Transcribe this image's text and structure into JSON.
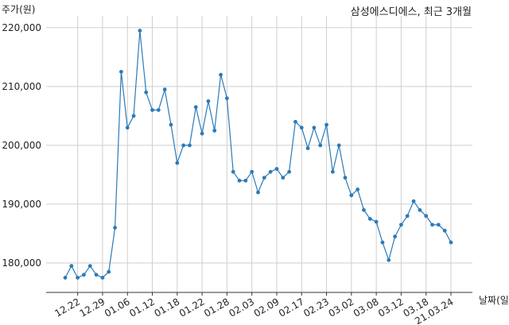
{
  "chart_data": {
    "type": "line",
    "title": "삼성에스디에스, 최근 3개월",
    "ylabel": "주가(원)",
    "xlabel": "날짜(일)",
    "ylim": [
      175000,
      222000
    ],
    "yticks": [
      180000,
      190000,
      200000,
      210000,
      220000
    ],
    "ytick_labels": [
      "180,000",
      "190,000",
      "200,000",
      "210,000",
      "220,000"
    ],
    "xtick_labels": [
      "12.22",
      "12.29",
      "01.06",
      "01.12",
      "01.18",
      "01.22",
      "01.28",
      "02.03",
      "02.09",
      "02.17",
      "02.23",
      "03.02",
      "03.08",
      "03.12",
      "03.18",
      "21.03.24"
    ],
    "xtick_index": [
      2,
      6,
      10,
      14,
      18,
      22,
      26,
      30,
      34,
      38,
      42,
      46,
      50,
      54,
      58,
      62
    ],
    "grid": true,
    "color": "#2b7bb9",
    "series": [
      {
        "name": "",
        "values": [
          177500,
          179500,
          177500,
          178000,
          179500,
          178000,
          177500,
          178500,
          186000,
          212500,
          203000,
          205000,
          219500,
          209000,
          206000,
          206000,
          209500,
          203500,
          197000,
          200000,
          200000,
          206500,
          202000,
          207500,
          202500,
          212000,
          208000,
          195500,
          194000,
          194000,
          195500,
          192000,
          194500,
          195500,
          196000,
          194500,
          195500,
          204000,
          203000,
          199500,
          203000,
          200000,
          203500,
          195500,
          200000,
          194500,
          191500,
          192500,
          189000,
          187500,
          187000,
          183500,
          180500,
          184500,
          186500,
          188000,
          190500,
          189000,
          188000,
          186500,
          186500,
          185500,
          183500
        ]
      }
    ]
  }
}
